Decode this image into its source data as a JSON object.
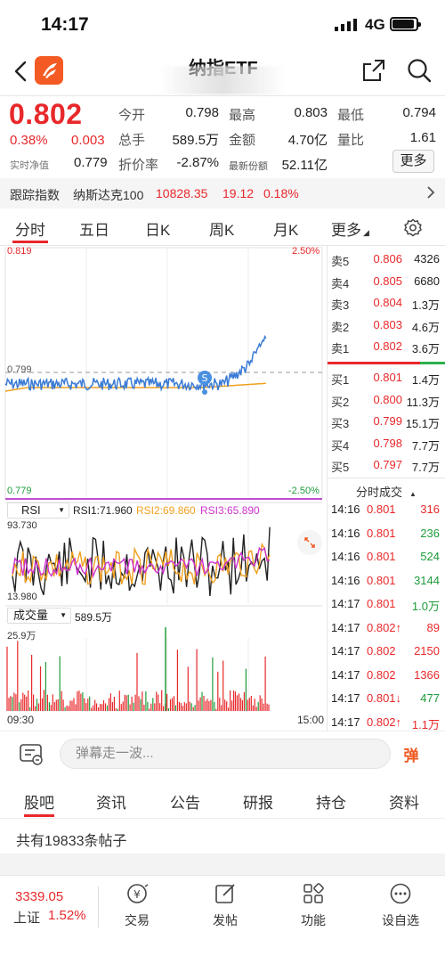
{
  "status_bar": {
    "time": "14:17",
    "network": "4G"
  },
  "nav": {
    "title": "纳指ETF"
  },
  "quote": {
    "price": "0.802",
    "change_pct": "0.38%",
    "change_amt": "0.003",
    "nav_label": "实时净值",
    "nav_value": "0.779",
    "fields": [
      {
        "label": "今开",
        "value": "0.798",
        "color": "green"
      },
      {
        "label": "最高",
        "value": "0.803",
        "color": "red"
      },
      {
        "label": "最低",
        "value": "0.794",
        "color": "green"
      },
      {
        "label": "总手",
        "value": "589.5万",
        "color": "dark"
      },
      {
        "label": "金额",
        "value": "4.70亿",
        "color": "dark"
      },
      {
        "label": "量比",
        "value": "1.61",
        "color": "dark"
      },
      {
        "label": "折价率",
        "value": "-2.87%",
        "color": "green"
      },
      {
        "label": "最新份额",
        "value": "52.11亿",
        "color": "dark"
      }
    ],
    "more_label": "更多"
  },
  "tracking": {
    "label": "跟踪指数",
    "index_name": "纳斯达克100",
    "value": "10828.35",
    "change": "19.12",
    "pct": "0.18%"
  },
  "chart_tabs": [
    "分时",
    "五日",
    "日K",
    "周K",
    "月K",
    "更多"
  ],
  "chart": {
    "high_label": "0.819",
    "high_pct": "2.50%",
    "prev_close_label": "0.799",
    "low_label": "0.779",
    "low_pct": "-2.50%",
    "marker_label": "S",
    "rsi_selector": "RSI",
    "rsi1": "RSI1:71.960",
    "rsi2": "RSI2:69.860",
    "rsi3": "RSI3:65.890",
    "rsi_max": "93.730",
    "rsi_min": "13.980",
    "vol_selector": "成交量",
    "vol_total": "589.5万",
    "vol_max": "25.9万",
    "time_start": "09:30",
    "time_end": "15:00"
  },
  "order_book": {
    "asks": [
      {
        "label": "卖5",
        "price": "0.806",
        "vol": "4326"
      },
      {
        "label": "卖4",
        "price": "0.805",
        "vol": "6680"
      },
      {
        "label": "卖3",
        "price": "0.804",
        "vol": "1.3万"
      },
      {
        "label": "卖2",
        "price": "0.803",
        "vol": "4.6万"
      },
      {
        "label": "卖1",
        "price": "0.802",
        "vol": "3.6万"
      }
    ],
    "bids": [
      {
        "label": "买1",
        "price": "0.801",
        "vol": "1.4万"
      },
      {
        "label": "买2",
        "price": "0.800",
        "vol": "11.3万"
      },
      {
        "label": "买3",
        "price": "0.799",
        "vol": "15.1万"
      },
      {
        "label": "买4",
        "price": "0.798",
        "vol": "7.7万"
      },
      {
        "label": "买5",
        "price": "0.797",
        "vol": "7.7万"
      }
    ]
  },
  "trades": {
    "header": "分时成交",
    "rows": [
      {
        "time": "14:16",
        "price": "0.801",
        "vol": "316",
        "vol_color": "red"
      },
      {
        "time": "14:16",
        "price": "0.801",
        "vol": "236",
        "vol_color": "green"
      },
      {
        "time": "14:16",
        "price": "0.801",
        "vol": "524",
        "vol_color": "green"
      },
      {
        "time": "14:16",
        "price": "0.801",
        "vol": "3144",
        "vol_color": "green"
      },
      {
        "time": "14:17",
        "price": "0.801",
        "vol": "1.0万",
        "vol_color": "green"
      },
      {
        "time": "14:17",
        "price": "0.802↑",
        "vol": "89",
        "vol_color": "red"
      },
      {
        "time": "14:17",
        "price": "0.802",
        "vol": "2150",
        "vol_color": "red"
      },
      {
        "time": "14:17",
        "price": "0.802",
        "vol": "1366",
        "vol_color": "red"
      },
      {
        "time": "14:17",
        "price": "0.801↓",
        "vol": "477",
        "vol_color": "green"
      },
      {
        "time": "14:17",
        "price": "0.802↑",
        "vol": "1.1万",
        "vol_color": "red"
      }
    ]
  },
  "comment": {
    "placeholder": "弹幕走一波...",
    "danmu_label": "弹"
  },
  "bottom_tabs": [
    "股吧",
    "资讯",
    "公告",
    "研报",
    "持仓",
    "资料"
  ],
  "post_count": "共有19833条帖子",
  "bottom_bar": {
    "index_value": "3339.05",
    "index_name": "上证",
    "index_pct": "1.52%",
    "items": [
      "交易",
      "发帖",
      "功能",
      "设自选"
    ]
  },
  "colors": {
    "up": "#e8282b",
    "down": "#1f9b3a",
    "brand": "#f45a23",
    "price_line": "#3a7bd5",
    "avg_line": "#f0a020"
  }
}
